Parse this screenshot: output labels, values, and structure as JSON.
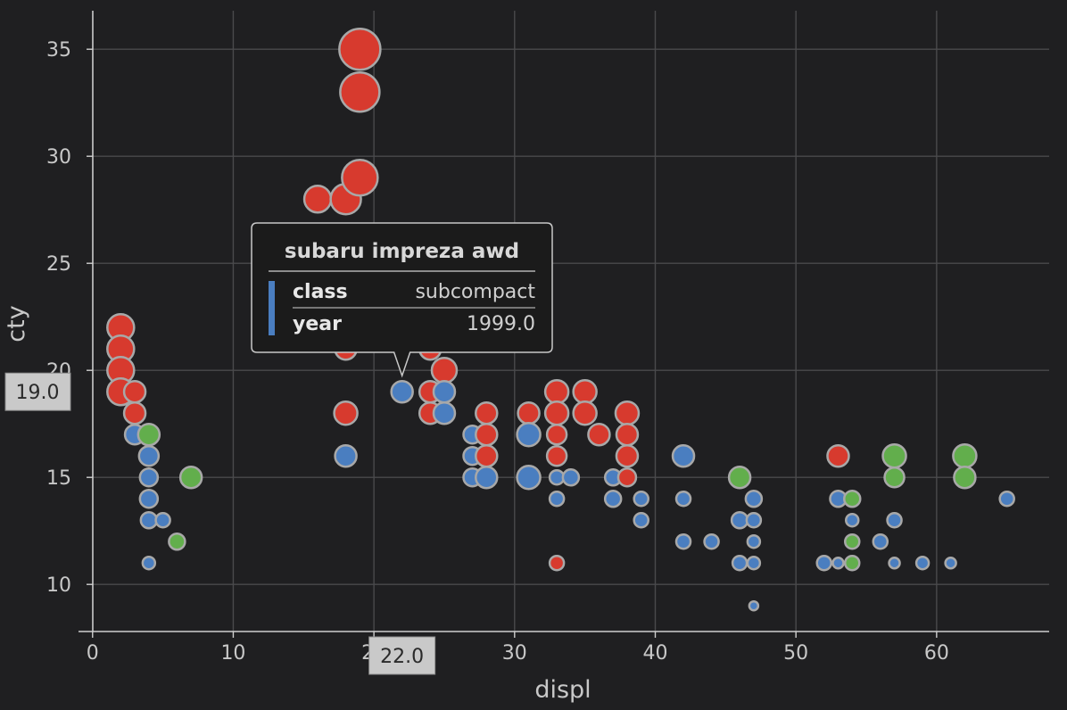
{
  "chart_data": {
    "type": "scatter",
    "xlabel": "displ",
    "ylabel": "cty",
    "xlim": [
      -1,
      68
    ],
    "ylim": [
      7.8,
      36.8
    ],
    "x_ticks": [
      0,
      10,
      20,
      30,
      40,
      50,
      60
    ],
    "y_ticks": [
      10,
      15,
      20,
      25,
      30,
      35
    ],
    "grid": true,
    "colors": {
      "red": "#d73a2e",
      "blue": "#4a7ec0",
      "green": "#62ae4c",
      "stroke": "#a8a8a8"
    },
    "points": [
      {
        "x": 2,
        "y": 22,
        "c": "red",
        "r": 15
      },
      {
        "x": 2,
        "y": 21,
        "c": "red",
        "r": 15
      },
      {
        "x": 2,
        "y": 20,
        "c": "red",
        "r": 15
      },
      {
        "x": 2,
        "y": 19,
        "c": "red",
        "r": 15
      },
      {
        "x": 3,
        "y": 19,
        "c": "red",
        "r": 12
      },
      {
        "x": 3,
        "y": 18,
        "c": "red",
        "r": 12
      },
      {
        "x": 3,
        "y": 17,
        "c": "blue",
        "r": 11
      },
      {
        "x": 4,
        "y": 17,
        "c": "green",
        "r": 12
      },
      {
        "x": 4,
        "y": 16,
        "c": "blue",
        "r": 11
      },
      {
        "x": 4,
        "y": 15,
        "c": "blue",
        "r": 10
      },
      {
        "x": 4,
        "y": 14,
        "c": "blue",
        "r": 10
      },
      {
        "x": 4,
        "y": 13,
        "c": "blue",
        "r": 9
      },
      {
        "x": 4,
        "y": 11,
        "c": "blue",
        "r": 7
      },
      {
        "x": 5,
        "y": 13,
        "c": "blue",
        "r": 8
      },
      {
        "x": 6,
        "y": 12,
        "c": "green",
        "r": 9
      },
      {
        "x": 7,
        "y": 15,
        "c": "green",
        "r": 12
      },
      {
        "x": 18,
        "y": 21,
        "c": "red",
        "r": 12
      },
      {
        "x": 18,
        "y": 18,
        "c": "red",
        "r": 13
      },
      {
        "x": 18,
        "y": 16,
        "c": "blue",
        "r": 12
      },
      {
        "x": 16,
        "y": 28,
        "c": "red",
        "r": 15
      },
      {
        "x": 18,
        "y": 28,
        "c": "red",
        "r": 17
      },
      {
        "x": 19,
        "y": 29,
        "c": "red",
        "r": 20
      },
      {
        "x": 19,
        "y": 33,
        "c": "red",
        "r": 22
      },
      {
        "x": 19,
        "y": 35,
        "c": "red",
        "r": 23
      },
      {
        "x": 22,
        "y": 19,
        "c": "blue",
        "r": 12
      },
      {
        "x": 24,
        "y": 21,
        "c": "red",
        "r": 12
      },
      {
        "x": 24,
        "y": 19,
        "c": "red",
        "r": 12
      },
      {
        "x": 24,
        "y": 18,
        "c": "red",
        "r": 12
      },
      {
        "x": 25,
        "y": 20,
        "c": "red",
        "r": 14
      },
      {
        "x": 25,
        "y": 19,
        "c": "blue",
        "r": 12
      },
      {
        "x": 25,
        "y": 18,
        "c": "blue",
        "r": 12
      },
      {
        "x": 27,
        "y": 17,
        "c": "blue",
        "r": 10
      },
      {
        "x": 27,
        "y": 16,
        "c": "blue",
        "r": 10
      },
      {
        "x": 27,
        "y": 15,
        "c": "blue",
        "r": 10
      },
      {
        "x": 28,
        "y": 18,
        "c": "red",
        "r": 12
      },
      {
        "x": 28,
        "y": 17,
        "c": "red",
        "r": 12
      },
      {
        "x": 28,
        "y": 16,
        "c": "red",
        "r": 12
      },
      {
        "x": 28,
        "y": 15,
        "c": "blue",
        "r": 12
      },
      {
        "x": 31,
        "y": 18,
        "c": "red",
        "r": 12
      },
      {
        "x": 31,
        "y": 17,
        "c": "blue",
        "r": 13
      },
      {
        "x": 31,
        "y": 15,
        "c": "blue",
        "r": 13
      },
      {
        "x": 33,
        "y": 19,
        "c": "red",
        "r": 13
      },
      {
        "x": 33,
        "y": 18,
        "c": "red",
        "r": 13
      },
      {
        "x": 33,
        "y": 17,
        "c": "red",
        "r": 11
      },
      {
        "x": 33,
        "y": 16,
        "c": "red",
        "r": 11
      },
      {
        "x": 33,
        "y": 15,
        "c": "blue",
        "r": 8
      },
      {
        "x": 33,
        "y": 14,
        "c": "blue",
        "r": 8
      },
      {
        "x": 33,
        "y": 11,
        "c": "red",
        "r": 8
      },
      {
        "x": 34,
        "y": 15,
        "c": "blue",
        "r": 9
      },
      {
        "x": 35,
        "y": 19,
        "c": "red",
        "r": 13
      },
      {
        "x": 35,
        "y": 18,
        "c": "red",
        "r": 13
      },
      {
        "x": 36,
        "y": 17,
        "c": "red",
        "r": 12
      },
      {
        "x": 37,
        "y": 15,
        "c": "blue",
        "r": 9
      },
      {
        "x": 37,
        "y": 14,
        "c": "blue",
        "r": 9
      },
      {
        "x": 38,
        "y": 18,
        "c": "red",
        "r": 13
      },
      {
        "x": 38,
        "y": 17,
        "c": "red",
        "r": 12
      },
      {
        "x": 38,
        "y": 16,
        "c": "red",
        "r": 12
      },
      {
        "x": 38,
        "y": 15,
        "c": "red",
        "r": 10
      },
      {
        "x": 39,
        "y": 14,
        "c": "blue",
        "r": 8
      },
      {
        "x": 39,
        "y": 13,
        "c": "blue",
        "r": 8
      },
      {
        "x": 42,
        "y": 16,
        "c": "blue",
        "r": 12
      },
      {
        "x": 42,
        "y": 14,
        "c": "blue",
        "r": 8
      },
      {
        "x": 42,
        "y": 12,
        "c": "blue",
        "r": 8
      },
      {
        "x": 44,
        "y": 12,
        "c": "blue",
        "r": 8
      },
      {
        "x": 46,
        "y": 15,
        "c": "green",
        "r": 12
      },
      {
        "x": 46,
        "y": 13,
        "c": "blue",
        "r": 9
      },
      {
        "x": 46,
        "y": 11,
        "c": "blue",
        "r": 8
      },
      {
        "x": 47,
        "y": 14,
        "c": "blue",
        "r": 9
      },
      {
        "x": 47,
        "y": 13,
        "c": "blue",
        "r": 8
      },
      {
        "x": 47,
        "y": 12,
        "c": "blue",
        "r": 7
      },
      {
        "x": 47,
        "y": 11,
        "c": "blue",
        "r": 7
      },
      {
        "x": 47,
        "y": 9,
        "c": "blue",
        "r": 5
      },
      {
        "x": 52,
        "y": 11,
        "c": "blue",
        "r": 8
      },
      {
        "x": 53,
        "y": 16,
        "c": "red",
        "r": 12
      },
      {
        "x": 53,
        "y": 14,
        "c": "blue",
        "r": 9
      },
      {
        "x": 53,
        "y": 11,
        "c": "blue",
        "r": 6
      },
      {
        "x": 54,
        "y": 14,
        "c": "green",
        "r": 9
      },
      {
        "x": 54,
        "y": 13,
        "c": "blue",
        "r": 7
      },
      {
        "x": 54,
        "y": 12,
        "c": "green",
        "r": 8
      },
      {
        "x": 54,
        "y": 11,
        "c": "green",
        "r": 8
      },
      {
        "x": 56,
        "y": 12,
        "c": "blue",
        "r": 8
      },
      {
        "x": 57,
        "y": 16,
        "c": "green",
        "r": 13
      },
      {
        "x": 57,
        "y": 15,
        "c": "green",
        "r": 11
      },
      {
        "x": 57,
        "y": 13,
        "c": "blue",
        "r": 8
      },
      {
        "x": 57,
        "y": 11,
        "c": "blue",
        "r": 6
      },
      {
        "x": 59,
        "y": 11,
        "c": "blue",
        "r": 7
      },
      {
        "x": 61,
        "y": 11,
        "c": "blue",
        "r": 6
      },
      {
        "x": 62,
        "y": 16,
        "c": "green",
        "r": 13
      },
      {
        "x": 62,
        "y": 15,
        "c": "green",
        "r": 12
      },
      {
        "x": 65,
        "y": 14,
        "c": "blue",
        "r": 8
      }
    ],
    "tooltip": {
      "title": "subaru impreza awd",
      "rows": [
        {
          "key": "class",
          "value": "subcompact"
        },
        {
          "key": "year",
          "value": "1999.0"
        }
      ],
      "swatch_color": "#4a7ec0",
      "anchor_x": 22,
      "anchor_y": 19
    },
    "crosshair": {
      "x_label": "22.0",
      "y_label": "19.0"
    }
  }
}
